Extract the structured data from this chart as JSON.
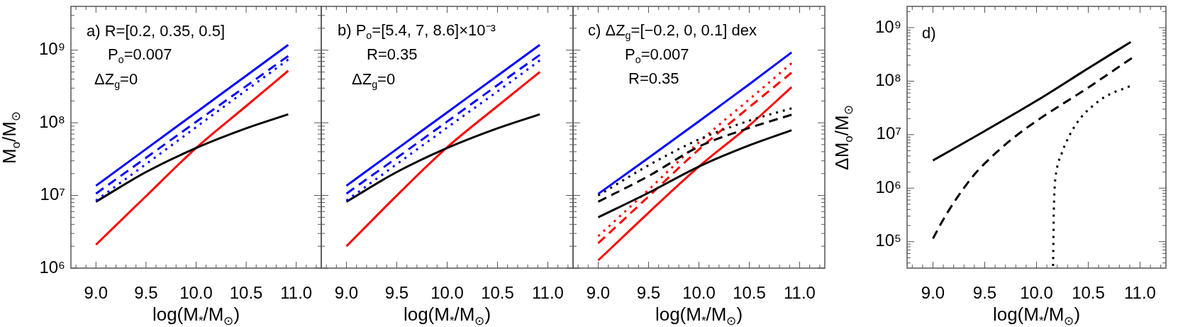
{
  "chart_data": [
    {
      "type": "line",
      "xlabel": "log(M$_{*}$/M$_{⊙}$)",
      "ylabel": "M$_{o}$/M$_{⊙}$",
      "annotations": [
        "a) R=[0.2, 0.35, 0.5]",
        "P$_{o}$=0.007",
        "ΔZ$_{g}$=0"
      ],
      "log": "y",
      "xlim": [
        8.75,
        11.25
      ],
      "ylim": [
        1000000.0,
        4000000000.0
      ],
      "xticks": [
        {
          "value": 8.8,
          "label": null
        },
        {
          "value": 8.9,
          "label": null
        },
        {
          "value": 9,
          "label": "9.0"
        },
        {
          "value": 9.1,
          "label": null
        },
        {
          "value": 9.2,
          "label": null
        },
        {
          "value": 9.3,
          "label": null
        },
        {
          "value": 9.4,
          "label": null
        },
        {
          "value": 9.5,
          "label": "9.5"
        },
        {
          "value": 9.6,
          "label": null
        },
        {
          "value": 9.7,
          "label": null
        },
        {
          "value": 9.8,
          "label": null
        },
        {
          "value": 9.9,
          "label": null
        },
        {
          "value": 10,
          "label": "10.0"
        },
        {
          "value": 10.1,
          "label": null
        },
        {
          "value": 10.2,
          "label": null
        },
        {
          "value": 10.3,
          "label": null
        },
        {
          "value": 10.4,
          "label": null
        },
        {
          "value": 10.5,
          "label": "10.5"
        },
        {
          "value": 10.6,
          "label": null
        },
        {
          "value": 10.7,
          "label": null
        },
        {
          "value": 10.8,
          "label": null
        },
        {
          "value": 10.9,
          "label": null
        },
        {
          "value": 11,
          "label": "11.0"
        },
        {
          "value": 11.1,
          "label": null
        },
        {
          "value": 11.2,
          "label": null
        }
      ],
      "yticks": [
        {
          "value": 1000000.0,
          "label": "10⁶"
        },
        {
          "value": 2000000.0,
          "label": null
        },
        {
          "value": 3000000.0,
          "label": null
        },
        {
          "value": 4000000.0,
          "label": null
        },
        {
          "value": 5000000.0,
          "label": null
        },
        {
          "value": 6000000.0,
          "label": null
        },
        {
          "value": 7000000.0,
          "label": null
        },
        {
          "value": 8000000.0,
          "label": null
        },
        {
          "value": 9000000.0,
          "label": null
        },
        {
          "value": 10000000.0,
          "label": "10⁷"
        },
        {
          "value": 20000000.0,
          "label": null
        },
        {
          "value": 30000000.0,
          "label": null
        },
        {
          "value": 40000000.0,
          "label": null
        },
        {
          "value": 50000000.0,
          "label": null
        },
        {
          "value": 60000000.0,
          "label": null
        },
        {
          "value": 70000000.0,
          "label": null
        },
        {
          "value": 80000000.0,
          "label": null
        },
        {
          "value": 90000000.0,
          "label": null
        },
        {
          "value": 100000000.0,
          "label": "10⁸"
        },
        {
          "value": 200000000.0,
          "label": null
        },
        {
          "value": 300000000.0,
          "label": null
        },
        {
          "value": 400000000.0,
          "label": null
        },
        {
          "value": 500000000.0,
          "label": null
        },
        {
          "value": 600000000.0,
          "label": null
        },
        {
          "value": 700000000.0,
          "label": null
        },
        {
          "value": 800000000.0,
          "label": null
        },
        {
          "value": 900000000.0,
          "label": null
        },
        {
          "value": 1000000000.0,
          "label": "10⁹"
        },
        {
          "value": 2000000000.0,
          "label": null
        },
        {
          "value": 3000000000.0,
          "label": null
        }
      ],
      "x": [
        9,
        9.5,
        10,
        10.5,
        10.92
      ],
      "series": [
        {
          "color": "#0000ff",
          "line_style": "solid",
          "values": [
            13600000.0,
            43500000.0,
            139000000.0,
            445000000.0,
            1180000000.0
          ]
        },
        {
          "color": "#0000ff",
          "line_style": "dashed",
          "values": [
            10600000.0,
            33000000.0,
            103000000.0,
            320000000.0,
            830000000.0
          ]
        },
        {
          "color": "#0000ff",
          "line_style": "dotted",
          "values": [
            8500000.0,
            27000000.0,
            87000000.0,
            280000000.0,
            740000000.0
          ]
        },
        {
          "color": "#000000",
          "line_style": "solid",
          "values": [
            8200000.0,
            21000000.0,
            45000000.0,
            84000000.0,
            131000000.0
          ]
        },
        {
          "color": "#ff0000",
          "line_style": "solid",
          "values": [
            2100000.0,
            9800000.0,
            45000000.0,
            170000000.0,
            520000000.0
          ]
        }
      ]
    },
    {
      "type": "line",
      "xlabel": "log(M$_{*}$/M$_{⊙}$)",
      "annotations": [
        "b) P$_{o}$=[5.4, 7, 8.6]×10⁻³",
        "R=0.35",
        "ΔZ$_{g}$=0"
      ],
      "log": "y",
      "tick_labels": "x",
      "xlim": [
        8.75,
        11.25
      ],
      "ylim": [
        1000000.0,
        4000000000.0
      ],
      "xticks": [
        {
          "value": 8.8,
          "label": null
        },
        {
          "value": 8.9,
          "label": null
        },
        {
          "value": 9,
          "label": "9.0"
        },
        {
          "value": 9.1,
          "label": null
        },
        {
          "value": 9.2,
          "label": null
        },
        {
          "value": 9.3,
          "label": null
        },
        {
          "value": 9.4,
          "label": null
        },
        {
          "value": 9.5,
          "label": "9.5"
        },
        {
          "value": 9.6,
          "label": null
        },
        {
          "value": 9.7,
          "label": null
        },
        {
          "value": 9.8,
          "label": null
        },
        {
          "value": 9.9,
          "label": null
        },
        {
          "value": 10,
          "label": "10.0"
        },
        {
          "value": 10.1,
          "label": null
        },
        {
          "value": 10.2,
          "label": null
        },
        {
          "value": 10.3,
          "label": null
        },
        {
          "value": 10.4,
          "label": null
        },
        {
          "value": 10.5,
          "label": "10.5"
        },
        {
          "value": 10.6,
          "label": null
        },
        {
          "value": 10.7,
          "label": null
        },
        {
          "value": 10.8,
          "label": null
        },
        {
          "value": 10.9,
          "label": null
        },
        {
          "value": 11,
          "label": "11.0"
        },
        {
          "value": 11.1,
          "label": null
        },
        {
          "value": 11.2,
          "label": null
        }
      ],
      "yticks": [
        {
          "value": 1000000.0,
          "label": null
        },
        {
          "value": 2000000.0,
          "label": null
        },
        {
          "value": 3000000.0,
          "label": null
        },
        {
          "value": 4000000.0,
          "label": null
        },
        {
          "value": 5000000.0,
          "label": null
        },
        {
          "value": 6000000.0,
          "label": null
        },
        {
          "value": 7000000.0,
          "label": null
        },
        {
          "value": 8000000.0,
          "label": null
        },
        {
          "value": 9000000.0,
          "label": null
        },
        {
          "value": 10000000.0,
          "label": null
        },
        {
          "value": 20000000.0,
          "label": null
        },
        {
          "value": 30000000.0,
          "label": null
        },
        {
          "value": 40000000.0,
          "label": null
        },
        {
          "value": 50000000.0,
          "label": null
        },
        {
          "value": 60000000.0,
          "label": null
        },
        {
          "value": 70000000.0,
          "label": null
        },
        {
          "value": 80000000.0,
          "label": null
        },
        {
          "value": 90000000.0,
          "label": null
        },
        {
          "value": 100000000.0,
          "label": null
        },
        {
          "value": 200000000.0,
          "label": null
        },
        {
          "value": 300000000.0,
          "label": null
        },
        {
          "value": 400000000.0,
          "label": null
        },
        {
          "value": 500000000.0,
          "label": null
        },
        {
          "value": 600000000.0,
          "label": null
        },
        {
          "value": 700000000.0,
          "label": null
        },
        {
          "value": 800000000.0,
          "label": null
        },
        {
          "value": 900000000.0,
          "label": null
        },
        {
          "value": 1000000000.0,
          "label": null
        },
        {
          "value": 2000000000.0,
          "label": null
        },
        {
          "value": 3000000000.0,
          "label": null
        }
      ],
      "x": [
        9,
        9.5,
        10,
        10.5,
        10.92
      ],
      "series": [
        {
          "color": "#0000ff",
          "line_style": "solid",
          "values": [
            13600000.0,
            43500000.0,
            139000000.0,
            445000000.0,
            1180000000.0
          ]
        },
        {
          "color": "#0000ff",
          "line_style": "dashed",
          "values": [
            10600000.0,
            33000000.0,
            104000000.0,
            330000000.0,
            860000000.0
          ]
        },
        {
          "color": "#0000ff",
          "line_style": "dotted",
          "values": [
            8500000.0,
            27000000.0,
            86000000.0,
            270000000.0,
            720000000.0
          ]
        },
        {
          "color": "#000000",
          "line_style": "solid",
          "values": [
            8200000.0,
            21000000.0,
            45000000.0,
            84000000.0,
            131000000.0
          ]
        },
        {
          "color": "#ff0000",
          "line_style": "solid",
          "values": [
            2000000.0,
            10000000.0,
            46000000.0,
            170000000.0,
            500000000.0
          ]
        }
      ]
    },
    {
      "type": "line",
      "xlabel": "log(M$_{*}$/M$_{⊙}$)",
      "annotations": [
        "c) ΔZ$_{g}$=[−0.2, 0, 0.1] dex",
        "P$_{o}$=0.007",
        "R=0.35"
      ],
      "log": "y",
      "tick_labels": "x",
      "xlim": [
        8.75,
        11.25
      ],
      "ylim": [
        1000000.0,
        4000000000.0
      ],
      "xticks": [
        {
          "value": 8.8,
          "label": null
        },
        {
          "value": 8.9,
          "label": null
        },
        {
          "value": 9,
          "label": "9.0"
        },
        {
          "value": 9.1,
          "label": null
        },
        {
          "value": 9.2,
          "label": null
        },
        {
          "value": 9.3,
          "label": null
        },
        {
          "value": 9.4,
          "label": null
        },
        {
          "value": 9.5,
          "label": "9.5"
        },
        {
          "value": 9.6,
          "label": null
        },
        {
          "value": 9.7,
          "label": null
        },
        {
          "value": 9.8,
          "label": null
        },
        {
          "value": 9.9,
          "label": null
        },
        {
          "value": 10,
          "label": "10.0"
        },
        {
          "value": 10.1,
          "label": null
        },
        {
          "value": 10.2,
          "label": null
        },
        {
          "value": 10.3,
          "label": null
        },
        {
          "value": 10.4,
          "label": null
        },
        {
          "value": 10.5,
          "label": "10.5"
        },
        {
          "value": 10.6,
          "label": null
        },
        {
          "value": 10.7,
          "label": null
        },
        {
          "value": 10.8,
          "label": null
        },
        {
          "value": 10.9,
          "label": null
        },
        {
          "value": 11,
          "label": "11.0"
        },
        {
          "value": 11.1,
          "label": null
        },
        {
          "value": 11.2,
          "label": null
        }
      ],
      "yticks": [
        {
          "value": 1000000.0,
          "label": null
        },
        {
          "value": 2000000.0,
          "label": null
        },
        {
          "value": 3000000.0,
          "label": null
        },
        {
          "value": 4000000.0,
          "label": null
        },
        {
          "value": 5000000.0,
          "label": null
        },
        {
          "value": 6000000.0,
          "label": null
        },
        {
          "value": 7000000.0,
          "label": null
        },
        {
          "value": 8000000.0,
          "label": null
        },
        {
          "value": 9000000.0,
          "label": null
        },
        {
          "value": 10000000.0,
          "label": null
        },
        {
          "value": 20000000.0,
          "label": null
        },
        {
          "value": 30000000.0,
          "label": null
        },
        {
          "value": 40000000.0,
          "label": null
        },
        {
          "value": 50000000.0,
          "label": null
        },
        {
          "value": 60000000.0,
          "label": null
        },
        {
          "value": 70000000.0,
          "label": null
        },
        {
          "value": 80000000.0,
          "label": null
        },
        {
          "value": 90000000.0,
          "label": null
        },
        {
          "value": 100000000.0,
          "label": null
        },
        {
          "value": 200000000.0,
          "label": null
        },
        {
          "value": 300000000.0,
          "label": null
        },
        {
          "value": 400000000.0,
          "label": null
        },
        {
          "value": 500000000.0,
          "label": null
        },
        {
          "value": 600000000.0,
          "label": null
        },
        {
          "value": 700000000.0,
          "label": null
        },
        {
          "value": 800000000.0,
          "label": null
        },
        {
          "value": 900000000.0,
          "label": null
        },
        {
          "value": 1000000000.0,
          "label": null
        },
        {
          "value": 2000000000.0,
          "label": null
        },
        {
          "value": 3000000000.0,
          "label": null
        }
      ],
      "x": [
        9,
        9.5,
        10,
        10.5,
        10.92
      ],
      "series": [
        {
          "color": "#0000ff",
          "line_style": "solid",
          "values": [
            10500000.0,
            33000000.0,
            105000000.0,
            340000000.0,
            930000000.0
          ]
        },
        {
          "color": "#000000",
          "line_style": "dotted",
          "values": [
            10000000.0,
            26000000.0,
            59000000.0,
            107000000.0,
            158000000.0
          ]
        },
        {
          "color": "#000000",
          "line_style": "dashed",
          "values": [
            8200000.0,
            18500000.0,
            47000000.0,
            85000000.0,
            129000000.0
          ]
        },
        {
          "color": "#000000",
          "line_style": "solid",
          "values": [
            5000000.0,
            10900000.0,
            25000000.0,
            49000000.0,
            79000000.0
          ]
        },
        {
          "color": "#ff0000",
          "line_style": "dotted",
          "values": [
            2750000.0,
            12000000.0,
            54000000.0,
            210000000.0,
            660000000.0
          ]
        },
        {
          "color": "#ff0000",
          "line_style": "dashed",
          "values": [
            2200000.0,
            9700000.0,
            43000000.0,
            164000000.0,
            490000000.0
          ]
        },
        {
          "color": "#ff0000",
          "line_style": "solid",
          "values": [
            1280000.0,
            5800000.0,
            25000000.0,
            92000000.0,
            310000000.0
          ]
        }
      ]
    },
    {
      "type": "line",
      "xlabel": "log(M$_{*}$/M$_{⊙}$)",
      "ylabel": "ΔM$_{o}$/M$_{⊙}$",
      "annotations": [
        "d)"
      ],
      "log": "y",
      "xlim": [
        8.75,
        11.25
      ],
      "ylim": [
        32000.0,
        2500000000.0
      ],
      "xticks": [
        {
          "value": 8.8,
          "label": null
        },
        {
          "value": 8.9,
          "label": null
        },
        {
          "value": 9,
          "label": "9.0"
        },
        {
          "value": 9.1,
          "label": null
        },
        {
          "value": 9.2,
          "label": null
        },
        {
          "value": 9.3,
          "label": null
        },
        {
          "value": 9.4,
          "label": null
        },
        {
          "value": 9.5,
          "label": "9.5"
        },
        {
          "value": 9.6,
          "label": null
        },
        {
          "value": 9.7,
          "label": null
        },
        {
          "value": 9.8,
          "label": null
        },
        {
          "value": 9.9,
          "label": null
        },
        {
          "value": 10,
          "label": "10.0"
        },
        {
          "value": 10.1,
          "label": null
        },
        {
          "value": 10.2,
          "label": null
        },
        {
          "value": 10.3,
          "label": null
        },
        {
          "value": 10.4,
          "label": null
        },
        {
          "value": 10.5,
          "label": "10.5"
        },
        {
          "value": 10.6,
          "label": null
        },
        {
          "value": 10.7,
          "label": null
        },
        {
          "value": 10.8,
          "label": null
        },
        {
          "value": 10.9,
          "label": null
        },
        {
          "value": 11,
          "label": "11.0"
        },
        {
          "value": 11.1,
          "label": null
        },
        {
          "value": 11.2,
          "label": null
        }
      ],
      "yticks": [
        {
          "value": 40000.0,
          "label": null
        },
        {
          "value": 50000.0,
          "label": null
        },
        {
          "value": 60000.0,
          "label": null
        },
        {
          "value": 70000.0,
          "label": null
        },
        {
          "value": 80000.0,
          "label": null
        },
        {
          "value": 90000.0,
          "label": null
        },
        {
          "value": 100000.0,
          "label": "10⁵"
        },
        {
          "value": 200000.0,
          "label": null
        },
        {
          "value": 300000.0,
          "label": null
        },
        {
          "value": 400000.0,
          "label": null
        },
        {
          "value": 500000.0,
          "label": null
        },
        {
          "value": 600000.0,
          "label": null
        },
        {
          "value": 700000.0,
          "label": null
        },
        {
          "value": 800000.0,
          "label": null
        },
        {
          "value": 900000.0,
          "label": null
        },
        {
          "value": 1000000.0,
          "label": "10⁶"
        },
        {
          "value": 2000000.0,
          "label": null
        },
        {
          "value": 3000000.0,
          "label": null
        },
        {
          "value": 4000000.0,
          "label": null
        },
        {
          "value": 5000000.0,
          "label": null
        },
        {
          "value": 6000000.0,
          "label": null
        },
        {
          "value": 7000000.0,
          "label": null
        },
        {
          "value": 8000000.0,
          "label": null
        },
        {
          "value": 9000000.0,
          "label": null
        },
        {
          "value": 10000000.0,
          "label": "10⁷"
        },
        {
          "value": 20000000.0,
          "label": null
        },
        {
          "value": 30000000.0,
          "label": null
        },
        {
          "value": 40000000.0,
          "label": null
        },
        {
          "value": 50000000.0,
          "label": null
        },
        {
          "value": 60000000.0,
          "label": null
        },
        {
          "value": 70000000.0,
          "label": null
        },
        {
          "value": 80000000.0,
          "label": null
        },
        {
          "value": 90000000.0,
          "label": null
        },
        {
          "value": 100000000.0,
          "label": "10⁸"
        },
        {
          "value": 200000000.0,
          "label": null
        },
        {
          "value": 300000000.0,
          "label": null
        },
        {
          "value": 400000000.0,
          "label": null
        },
        {
          "value": 500000000.0,
          "label": null
        },
        {
          "value": 600000000.0,
          "label": null
        },
        {
          "value": 700000000.0,
          "label": null
        },
        {
          "value": 800000000.0,
          "label": null
        },
        {
          "value": 900000000.0,
          "label": null
        },
        {
          "value": 1000000000.0,
          "label": "10⁹"
        },
        {
          "value": 2000000000.0,
          "label": null
        }
      ],
      "series": [
        {
          "color": "#000000",
          "line_style": "solid",
          "x": [
            9,
            9.5,
            10,
            10.5,
            10.91
          ],
          "values": [
            3300000.0,
            11700000.0,
            43000000.0,
            174000000.0,
            540000000.0
          ]
        },
        {
          "color": "#000000",
          "line_style": "dashed",
          "x": [
            9,
            9.1,
            9.25,
            9.4,
            9.5,
            9.75,
            10,
            10.5,
            10.92
          ],
          "values": [
            114000.0,
            260000.0,
            740000.0,
            1800000.0,
            2900000.0,
            7900000.0,
            18000000.0,
            76000000.0,
            270000000.0
          ]
        },
        {
          "color": "#000000",
          "line_style": "dotted",
          "x": [
            10.16,
            10.163,
            10.166,
            10.175,
            10.193,
            10.244,
            10.322,
            10.43,
            10.532,
            10.668,
            10.9
          ],
          "values": [
            35000.0,
            100000.0,
            300000.0,
            1000000.0,
            2100000.0,
            4500000.0,
            10000000.0,
            21000000.0,
            33000000.0,
            52000000.0,
            80000000.0
          ]
        }
      ]
    }
  ]
}
